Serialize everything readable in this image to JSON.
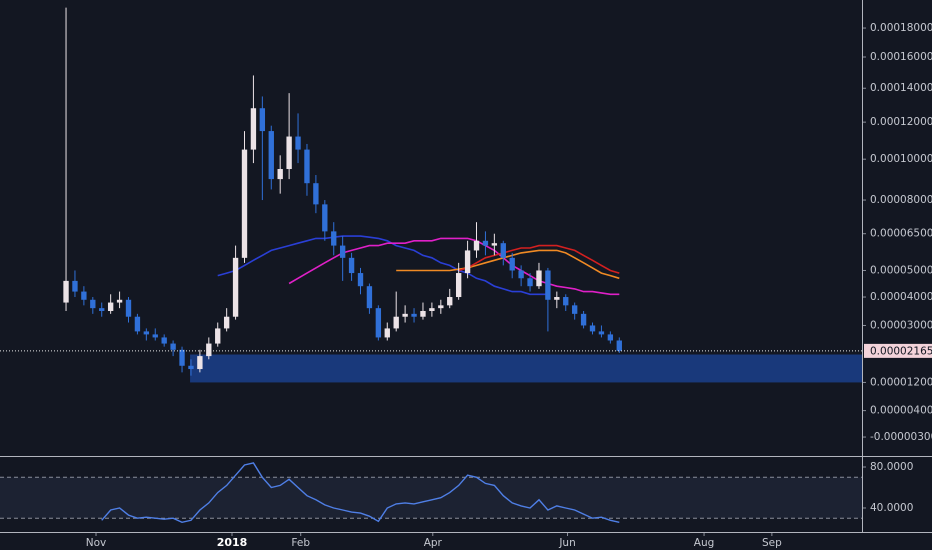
{
  "chart_data": [
    {
      "type": "candlestick",
      "categories": [
        null,
        null,
        null,
        null,
        null,
        null,
        null,
        null,
        null,
        null,
        null,
        null,
        null,
        null,
        null,
        null,
        null,
        null,
        null,
        null,
        null,
        null,
        null,
        null,
        null,
        null,
        null,
        null,
        null,
        null,
        null,
        null,
        null,
        null,
        null,
        null,
        null,
        null,
        null,
        null,
        null,
        null,
        null,
        null,
        null,
        null,
        null,
        null,
        null,
        null,
        null,
        null,
        null,
        null,
        null,
        null,
        null,
        null,
        null,
        null,
        null,
        null,
        null
      ],
      "open": [
        3.8e-05,
        4.6e-05,
        4.2e-05,
        3.9e-05,
        3.6e-05,
        3.5e-05,
        3.8e-05,
        3.9e-05,
        3.3e-05,
        2.8e-05,
        2.7e-05,
        2.6e-05,
        2.4e-05,
        2.2e-05,
        1.7e-05,
        1.6e-05,
        2e-05,
        2.4e-05,
        2.9e-05,
        3.3e-05,
        5.5e-05,
        0.000105,
        0.000128,
        0.000115,
        9e-05,
        9.5e-05,
        0.000112,
        0.000105,
        8.8e-05,
        7.8e-05,
        6.6e-05,
        6e-05,
        5.5e-05,
        4.9e-05,
        4.4e-05,
        3.6e-05,
        2.6e-05,
        2.9e-05,
        3.3e-05,
        3.4e-05,
        3.3e-05,
        3.5e-05,
        3.6e-05,
        3.7e-05,
        4e-05,
        4.9e-05,
        5.8e-05,
        6.2e-05,
        6e-05,
        6.1e-05,
        5.5e-05,
        5e-05,
        4.7e-05,
        4.4e-05,
        5e-05,
        3.9e-05,
        4e-05,
        3.7e-05,
        3.4e-05,
        3e-05,
        2.8e-05,
        2.7e-05,
        2.5e-05
      ],
      "high": [
        0.000195,
        5e-05,
        4.4e-05,
        4e-05,
        3.8e-05,
        4.1e-05,
        4.2e-05,
        4e-05,
        3.4e-05,
        2.9e-05,
        2.9e-05,
        2.7e-05,
        2.5e-05,
        2.3e-05,
        1.9e-05,
        2.2e-05,
        2.6e-05,
        3.1e-05,
        3.6e-05,
        6e-05,
        0.000115,
        0.000148,
        0.000135,
        0.000118,
        0.000102,
        0.000137,
        0.000125,
        0.000108,
        9.2e-05,
        8e-05,
        7e-05,
        6.4e-05,
        5.7e-05,
        5.1e-05,
        4.5e-05,
        3.7e-05,
        3.1e-05,
        4.2e-05,
        3.7e-05,
        3.6e-05,
        3.8e-05,
        3.8e-05,
        3.9e-05,
        4.3e-05,
        5.3e-05,
        6.2e-05,
        7e-05,
        6.6e-05,
        6.5e-05,
        6.2e-05,
        5.7e-05,
        5.2e-05,
        4.9e-05,
        5.3e-05,
        5.1e-05,
        4.2e-05,
        4.1e-05,
        3.8e-05,
        3.5e-05,
        3.1e-05,
        3e-05,
        2.8e-05,
        2.6e-05
      ],
      "low": [
        3.5e-05,
        4e-05,
        3.7e-05,
        3.4e-05,
        3.3e-05,
        3.4e-05,
        3.6e-05,
        3.1e-05,
        2.7e-05,
        2.5e-05,
        2.5e-05,
        2.3e-05,
        2e-05,
        1.5e-05,
        1.4e-05,
        1.5e-05,
        1.9e-05,
        2.3e-05,
        2.8e-05,
        3.2e-05,
        5.3e-05,
        9.8e-05,
        8e-05,
        8.5e-05,
        8.3e-05,
        9e-05,
        9.8e-05,
        8.2e-05,
        7.4e-05,
        6.2e-05,
        5.6e-05,
        4.6e-05,
        4.6e-05,
        4.1e-05,
        3.4e-05,
        2.5e-05,
        2.5e-05,
        2.8e-05,
        3.1e-05,
        3.1e-05,
        3.2e-05,
        3.3e-05,
        3.4e-05,
        3.6e-05,
        3.9e-05,
        4.7e-05,
        5.5e-05,
        5.6e-05,
        5.6e-05,
        5.2e-05,
        4.7e-05,
        4.4e-05,
        4.2e-05,
        4.3e-05,
        2.8e-05,
        3.6e-05,
        3.5e-05,
        3.2e-05,
        2.9e-05,
        2.7e-05,
        2.6e-05,
        2.4e-05,
        2.1e-05
      ],
      "close": [
        4.6e-05,
        4.2e-05,
        3.9e-05,
        3.6e-05,
        3.5e-05,
        3.8e-05,
        3.9e-05,
        3.3e-05,
        2.8e-05,
        2.7e-05,
        2.6e-05,
        2.4e-05,
        2.2e-05,
        1.7e-05,
        1.6e-05,
        2e-05,
        2.4e-05,
        2.9e-05,
        3.3e-05,
        5.5e-05,
        0.000105,
        0.000128,
        0.000115,
        9e-05,
        9.5e-05,
        0.000112,
        0.000105,
        8.8e-05,
        7.8e-05,
        6.6e-05,
        6e-05,
        5.5e-05,
        4.9e-05,
        4.4e-05,
        3.6e-05,
        2.6e-05,
        2.9e-05,
        3.3e-05,
        3.4e-05,
        3.3e-05,
        3.5e-05,
        3.6e-05,
        3.7e-05,
        4e-05,
        4.9e-05,
        5.8e-05,
        6.2e-05,
        6e-05,
        6.1e-05,
        5.5e-05,
        5e-05,
        4.7e-05,
        4.4e-05,
        5e-05,
        3.9e-05,
        4e-05,
        3.7e-05,
        3.4e-05,
        3e-05,
        2.8e-05,
        2.7e-05,
        2.5e-05,
        2.165e-05
      ],
      "up_color": "#ece3e7",
      "down_color": "#3070d8",
      "series": [
        {
          "color": "#2a3fd6",
          "values": [
            null,
            null,
            null,
            null,
            null,
            null,
            null,
            null,
            null,
            null,
            null,
            null,
            null,
            null,
            null,
            null,
            null,
            4.8e-05,
            4.9e-05,
            5e-05,
            5.2e-05,
            5.4e-05,
            5.6e-05,
            5.8e-05,
            5.9e-05,
            6e-05,
            6.1e-05,
            6.2e-05,
            6.3e-05,
            6.3e-05,
            6.35e-05,
            6.4e-05,
            6.4e-05,
            6.4e-05,
            6.35e-05,
            6.3e-05,
            6.2e-05,
            6e-05,
            5.9e-05,
            5.8e-05,
            5.6e-05,
            5.5e-05,
            5.3e-05,
            5.2e-05,
            5e-05,
            4.9e-05,
            4.7e-05,
            4.6e-05,
            4.4e-05,
            4.3e-05,
            4.2e-05,
            4.2e-05,
            4.1e-05,
            4.1e-05,
            4.1e-05,
            null,
            null,
            null,
            null,
            null,
            null,
            null,
            null
          ]
        },
        {
          "color": "#e020c8",
          "values": [
            null,
            null,
            null,
            null,
            null,
            null,
            null,
            null,
            null,
            null,
            null,
            null,
            null,
            null,
            null,
            null,
            null,
            null,
            null,
            null,
            null,
            null,
            null,
            null,
            null,
            4.5e-05,
            4.7e-05,
            4.9e-05,
            5.1e-05,
            5.3e-05,
            5.5e-05,
            5.7e-05,
            5.8e-05,
            5.9e-05,
            6e-05,
            6e-05,
            6.1e-05,
            6.1e-05,
            6.1e-05,
            6.2e-05,
            6.2e-05,
            6.2e-05,
            6.3e-05,
            6.3e-05,
            6.3e-05,
            6.3e-05,
            6.2e-05,
            6e-05,
            5.8e-05,
            5.5e-05,
            5.2e-05,
            5e-05,
            4.8e-05,
            4.6e-05,
            4.5e-05,
            4.4e-05,
            4.35e-05,
            4.3e-05,
            4.2e-05,
            4.2e-05,
            4.15e-05,
            4.1e-05,
            4.1e-05
          ]
        },
        {
          "color": "#f08a24",
          "values": [
            null,
            null,
            null,
            null,
            null,
            null,
            null,
            null,
            null,
            null,
            null,
            null,
            null,
            null,
            null,
            null,
            null,
            null,
            null,
            null,
            null,
            null,
            null,
            null,
            null,
            null,
            null,
            null,
            null,
            null,
            null,
            null,
            null,
            null,
            null,
            null,
            null,
            5e-05,
            5e-05,
            5e-05,
            5e-05,
            5e-05,
            5e-05,
            5e-05,
            5.05e-05,
            5.1e-05,
            5.2e-05,
            5.3e-05,
            5.4e-05,
            5.5e-05,
            5.6e-05,
            5.7e-05,
            5.75e-05,
            5.8e-05,
            5.8e-05,
            5.8e-05,
            5.7e-05,
            5.5e-05,
            5.3e-05,
            5.1e-05,
            4.9e-05,
            4.8e-05,
            4.7e-05
          ]
        },
        {
          "color": "#d42020",
          "values": [
            null,
            null,
            null,
            null,
            null,
            null,
            null,
            null,
            null,
            null,
            null,
            null,
            null,
            null,
            null,
            null,
            null,
            null,
            null,
            null,
            null,
            null,
            null,
            null,
            null,
            null,
            null,
            null,
            null,
            null,
            null,
            null,
            null,
            null,
            null,
            null,
            null,
            null,
            null,
            null,
            null,
            null,
            null,
            null,
            5e-05,
            5.1e-05,
            5.3e-05,
            5.5e-05,
            5.6e-05,
            5.7e-05,
            5.8e-05,
            5.9e-05,
            5.9e-05,
            6e-05,
            6e-05,
            6e-05,
            5.9e-05,
            5.8e-05,
            5.6e-05,
            5.4e-05,
            5.2e-05,
            5e-05,
            4.9e-05
          ]
        }
      ],
      "zone": {
        "from": 13.9,
        "low": 1.2e-05,
        "high": 2.05e-05,
        "color": "#1b3f8b"
      },
      "last_price": {
        "value": 2.165e-05,
        "label": "0.00002165"
      },
      "xlim": [
        -7.4,
        89.2
      ],
      "xticks": [
        {
          "value": 3.36,
          "label": "Nov"
        },
        {
          "value": 18.6,
          "label": "2018"
        },
        {
          "value": 26.3,
          "label": "Feb"
        },
        {
          "value": 41.1,
          "label": "Apr"
        },
        {
          "value": 56.2,
          "label": "Jun"
        },
        {
          "value": 71.5,
          "label": "Aug"
        },
        {
          "value": 79.1,
          "label": "Sep"
        }
      ],
      "ylim": [
        -7.5e-06,
        0.0002008
      ],
      "yticks": [
        {
          "value": 0.00018,
          "label": "0.00018000"
        },
        {
          "value": 0.00016,
          "label": "0.00016000"
        },
        {
          "value": 0.00014,
          "label": "0.00014000"
        },
        {
          "value": 0.00012,
          "label": "0.00012000"
        },
        {
          "value": 0.0001,
          "label": "0.00010000"
        },
        {
          "value": 8e-05,
          "label": "0.00008000"
        },
        {
          "value": 6.5e-05,
          "label": "0.00006500"
        },
        {
          "value": 5e-05,
          "label": "0.00005000"
        },
        {
          "value": 4e-05,
          "label": "0.00004000"
        },
        {
          "value": 3e-05,
          "label": "0.00003000"
        },
        {
          "value": 1.2e-05,
          "label": "0.00001200"
        },
        {
          "value": 4e-06,
          "label": "0.00000400"
        },
        {
          "value": -3e-06,
          "label": "-0.00000300"
        }
      ]
    },
    {
      "type": "line",
      "categories": [
        null,
        null,
        null,
        null,
        null,
        null,
        null,
        null,
        null,
        null,
        null,
        null,
        null,
        null,
        null,
        null,
        null,
        null,
        null,
        null,
        null,
        null,
        null,
        null,
        null,
        null,
        null,
        null,
        null,
        null,
        null,
        null,
        null,
        null,
        null,
        null,
        null,
        null,
        null,
        null,
        null,
        null,
        null,
        null,
        null,
        null,
        null,
        null,
        null,
        null,
        null,
        null,
        null,
        null,
        null,
        null,
        null,
        null,
        null,
        null,
        null,
        null,
        null
      ],
      "series": [
        {
          "color": "#4f7fe6",
          "values": [
            null,
            null,
            null,
            null,
            28,
            38,
            40,
            33,
            30,
            31,
            30,
            29,
            30,
            26,
            28,
            38,
            45,
            55,
            62,
            72,
            82,
            84,
            70,
            60,
            62,
            68,
            60,
            52,
            48,
            43,
            40,
            38,
            36,
            35,
            32,
            27,
            40,
            44,
            45,
            44,
            46,
            48,
            50,
            55,
            62,
            72,
            70,
            64,
            62,
            52,
            45,
            42,
            40,
            48,
            38,
            42,
            40,
            38,
            34,
            30,
            31,
            28,
            26
          ]
        }
      ],
      "bands": [
        30,
        70
      ],
      "xlim": [
        -7.4,
        89.2
      ],
      "ylim": [
        18.5,
        88.8
      ],
      "yticks": [
        {
          "value": 80,
          "label": "80.0000"
        },
        {
          "value": 40,
          "label": "40.0000"
        }
      ]
    }
  ]
}
